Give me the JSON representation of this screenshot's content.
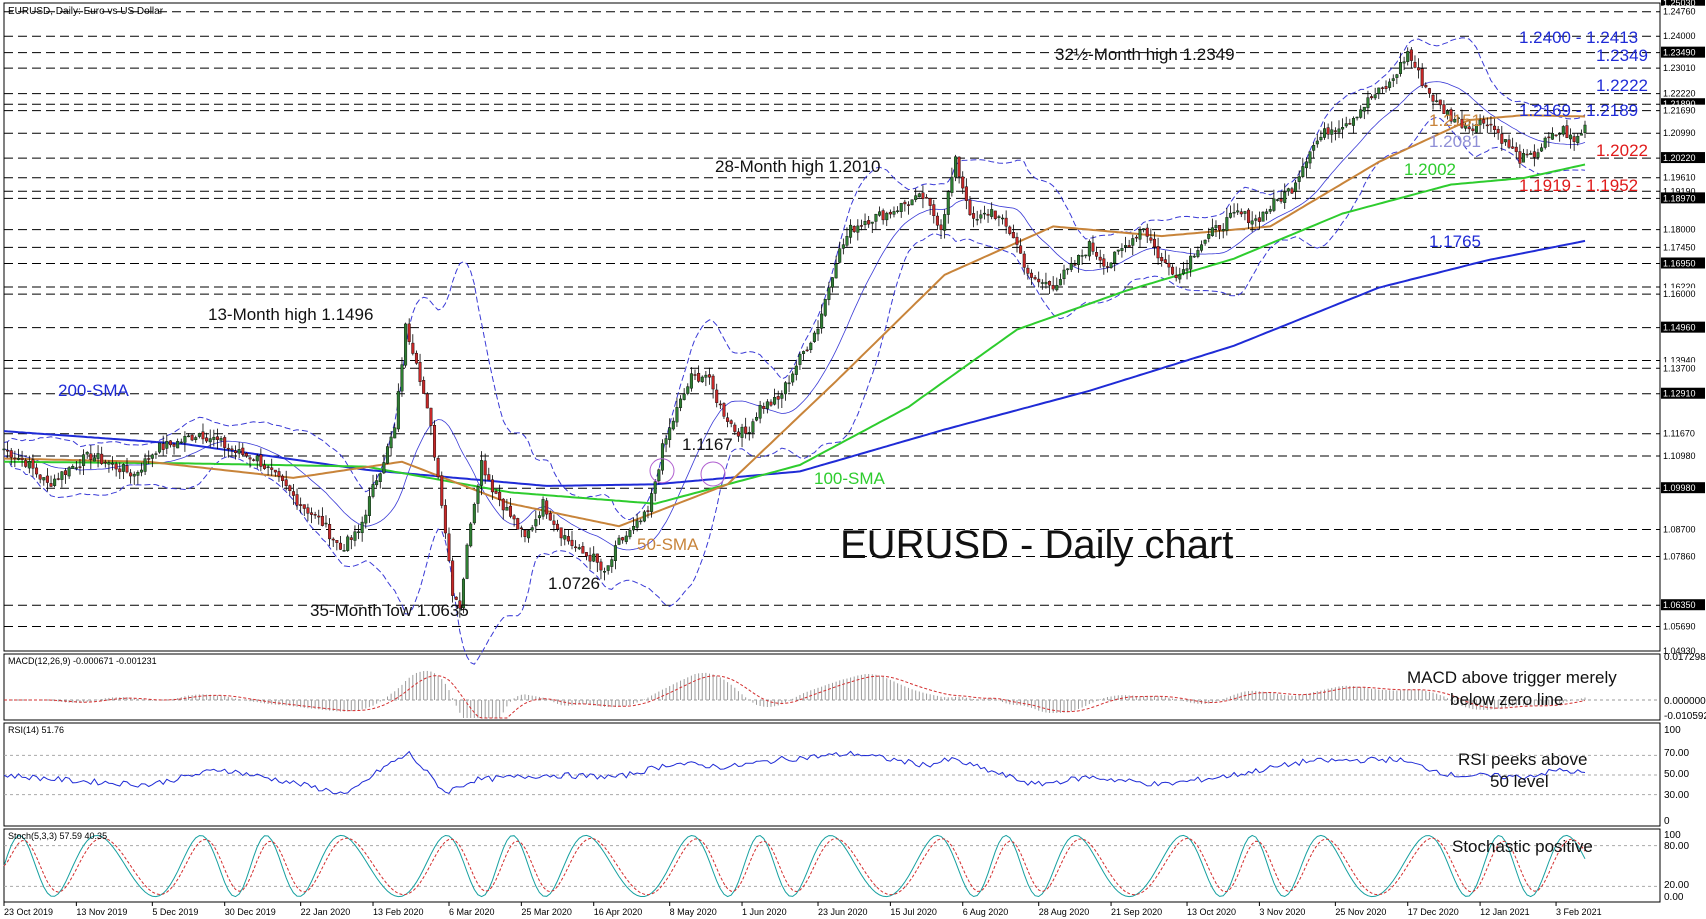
{
  "header": "EURUSD, Daily:  Euro vs US Dollar",
  "big_title": "EURUSD - Daily chart",
  "colors": {
    "candle_up": "#2e7d32",
    "candle_down": "#c62828",
    "sma50": "#c8843a",
    "sma100": "#2ecc2e",
    "sma200": "#1f2bd6",
    "bollinger": "#3a3ad6",
    "macd_hist": "#9c9c9c",
    "macd_signal": "#d32f2f",
    "rsi": "#1f2bd6",
    "stoch_k": "#16a0a0",
    "stoch_d": "#d32f2f",
    "level_blue": "#1f2bd6",
    "level_red": "#e01b1b",
    "level_green": "#2ecc2e",
    "level_orange": "#c8843a",
    "level_purple": "#8f8fd6"
  },
  "chart_data": {
    "type": "candlestick",
    "x_tick_labels": [
      "23 Oct 2019",
      "13 Nov 2019",
      "5 Dec 2019",
      "30 Dec 2019",
      "22 Jan 2020",
      "13 Feb 2020",
      "6 Mar 2020",
      "25 Mar 2020",
      "16 Apr 2020",
      "8 May 2020",
      "1 Jun 2020",
      "23 Jun 2020",
      "15 Jul 2020",
      "6 Aug 2020",
      "28 Aug 2020",
      "21 Sep 2020",
      "13 Oct 2020",
      "3 Nov 2020",
      "25 Nov 2020",
      "17 Dec 2020",
      "12 Jan 2021",
      "3 Feb 2021"
    ],
    "price_axis_ticks": [
      "1.25030",
      "1.24760",
      "1.24000",
      "1.23490",
      "1.23010",
      "1.22220",
      "1.21890",
      "1.21690",
      "1.20990",
      "1.20220",
      "1.19610",
      "1.19190",
      "1.18970",
      "1.18000",
      "1.17450",
      "1.16950",
      "1.16220",
      "1.16000",
      "1.14960",
      "1.13940",
      "1.13700",
      "1.12910",
      "1.11670",
      "1.10980",
      "1.09980",
      "1.08700",
      "1.07860",
      "1.06350",
      "1.05690",
      "1.04930"
    ],
    "ylim": [
      1.0493,
      1.2503
    ],
    "close_path": [
      [
        0,
        1.112
      ],
      [
        6,
        1.108
      ],
      [
        12,
        1.101
      ],
      [
        18,
        1.106
      ],
      [
        24,
        1.11
      ],
      [
        30,
        1.107
      ],
      [
        36,
        1.104
      ],
      [
        42,
        1.112
      ],
      [
        48,
        1.114
      ],
      [
        54,
        1.117
      ],
      [
        58,
        1.115
      ],
      [
        64,
        1.111
      ],
      [
        70,
        1.109
      ],
      [
        76,
        1.102
      ],
      [
        82,
        1.095
      ],
      [
        88,
        1.089
      ],
      [
        93,
        1.081
      ],
      [
        98,
        1.086
      ],
      [
        103,
        1.103
      ],
      [
        108,
        1.118
      ],
      [
        111,
        1.1496
      ],
      [
        114,
        1.14
      ],
      [
        118,
        1.118
      ],
      [
        121,
        1.096
      ],
      [
        124,
        1.068
      ],
      [
        126,
        1.0635
      ],
      [
        129,
        1.09
      ],
      [
        132,
        1.108
      ],
      [
        135,
        1.1
      ],
      [
        139,
        1.093
      ],
      [
        144,
        1.084
      ],
      [
        149,
        1.095
      ],
      [
        154,
        1.086
      ],
      [
        159,
        1.08
      ],
      [
        163,
        1.078
      ],
      [
        166,
        1.0726
      ],
      [
        170,
        1.083
      ],
      [
        174,
        1.087
      ],
      [
        178,
        1.092
      ],
      [
        182,
        1.112
      ],
      [
        186,
        1.124
      ],
      [
        190,
        1.134
      ],
      [
        194,
        1.135
      ],
      [
        198,
        1.125
      ],
      [
        202,
        1.118
      ],
      [
        205,
        1.1167
      ],
      [
        209,
        1.125
      ],
      [
        214,
        1.127
      ],
      [
        219,
        1.138
      ],
      [
        225,
        1.15
      ],
      [
        230,
        1.171
      ],
      [
        234,
        1.18
      ],
      [
        238,
        1.183
      ],
      [
        244,
        1.185
      ],
      [
        249,
        1.188
      ],
      [
        254,
        1.19
      ],
      [
        259,
        1.181
      ],
      [
        263,
        1.201
      ],
      [
        268,
        1.182
      ],
      [
        273,
        1.186
      ],
      [
        279,
        1.178
      ],
      [
        284,
        1.164
      ],
      [
        290,
        1.163
      ],
      [
        295,
        1.168
      ],
      [
        300,
        1.175
      ],
      [
        305,
        1.169
      ],
      [
        310,
        1.175
      ],
      [
        315,
        1.181
      ],
      [
        320,
        1.17
      ],
      [
        325,
        1.166
      ],
      [
        330,
        1.175
      ],
      [
        336,
        1.181
      ],
      [
        341,
        1.185
      ],
      [
        346,
        1.183
      ],
      [
        351,
        1.188
      ],
      [
        356,
        1.193
      ],
      [
        361,
        1.205
      ],
      [
        366,
        1.211
      ],
      [
        372,
        1.214
      ],
      [
        378,
        1.221
      ],
      [
        383,
        1.225
      ],
      [
        388,
        1.2349
      ],
      [
        392,
        1.226
      ],
      [
        396,
        1.219
      ],
      [
        400,
        1.215
      ],
      [
        405,
        1.212
      ],
      [
        410,
        1.214
      ],
      [
        415,
        1.207
      ],
      [
        419,
        1.202
      ],
      [
        422,
        1.2022
      ],
      [
        426,
        1.207
      ],
      [
        431,
        1.211
      ],
      [
        434,
        1.207
      ],
      [
        437,
        1.212
      ]
    ],
    "series": [
      {
        "name": "200-SMA",
        "values": [
          [
            0,
            1.1175
          ],
          [
            50,
            1.1135
          ],
          [
            100,
            1.1055
          ],
          [
            150,
            1.1005
          ],
          [
            180,
            1.101
          ],
          [
            220,
            1.105
          ],
          [
            260,
            1.118
          ],
          [
            300,
            1.13
          ],
          [
            340,
            1.144
          ],
          [
            380,
            1.162
          ],
          [
            410,
            1.1705
          ],
          [
            437,
            1.1765
          ]
        ]
      },
      {
        "name": "100-SMA",
        "values": [
          [
            0,
            1.108
          ],
          [
            50,
            1.1075
          ],
          [
            100,
            1.1065
          ],
          [
            140,
            1.0985
          ],
          [
            180,
            1.095
          ],
          [
            220,
            1.107
          ],
          [
            250,
            1.125
          ],
          [
            280,
            1.149
          ],
          [
            310,
            1.161
          ],
          [
            340,
            1.171
          ],
          [
            370,
            1.185
          ],
          [
            400,
            1.194
          ],
          [
            420,
            1.196
          ],
          [
            437,
            1.2002
          ]
        ]
      },
      {
        "name": "50-SMA",
        "values": [
          [
            0,
            1.109
          ],
          [
            40,
            1.108
          ],
          [
            80,
            1.103
          ],
          [
            110,
            1.108
          ],
          [
            140,
            1.095
          ],
          [
            170,
            1.088
          ],
          [
            200,
            1.101
          ],
          [
            230,
            1.133
          ],
          [
            260,
            1.166
          ],
          [
            290,
            1.181
          ],
          [
            320,
            1.178
          ],
          [
            350,
            1.181
          ],
          [
            380,
            1.201
          ],
          [
            405,
            1.214
          ],
          [
            420,
            1.2155
          ],
          [
            437,
            1.2151
          ]
        ]
      }
    ],
    "level_labels": [
      {
        "text": "1.2400 - 1.2413",
        "color": "blue"
      },
      {
        "text": "1.2349",
        "color": "blue"
      },
      {
        "text": "1.2222",
        "color": "blue"
      },
      {
        "text": "1.2169 - 1.2189",
        "color": "blue"
      },
      {
        "text": "1.2151",
        "color": "orange"
      },
      {
        "text": "1.2081",
        "color": "purple"
      },
      {
        "text": "1.2022",
        "color": "red"
      },
      {
        "text": "1.2002",
        "color": "green"
      },
      {
        "text": "1.1919 - 1.1952",
        "color": "red"
      },
      {
        "text": "1.1765",
        "color": "blue"
      }
    ],
    "annotations": {
      "high_2349": "32½-Month high 1.2349",
      "high_2010": "28-Month high 1.2010",
      "high_1496": "13-Month high 1.1496",
      "low_0635": "35-Month low 1.0635",
      "low_0726": "1.0726",
      "low_1167": "1.1167",
      "sma200": "200-SMA",
      "sma100": "100-SMA",
      "sma50": "50-SMA"
    },
    "macd": {
      "header": "MACD(12,26,9) -0.000671 -0.001231",
      "axis": [
        "0.017298",
        "0.000000",
        "-0.010592"
      ],
      "comment_line1": "MACD above trigger merely",
      "comment_line2": "below zero line"
    },
    "rsi": {
      "header": "RSI(14) 51.76",
      "axis": [
        "100",
        "70.00",
        "50.00",
        "30.00",
        "0"
      ],
      "comment_line1": "RSI peeks above",
      "comment_line2": "50 level",
      "values": [
        [
          0,
          50
        ],
        [
          20,
          44
        ],
        [
          40,
          40
        ],
        [
          60,
          56
        ],
        [
          80,
          42
        ],
        [
          95,
          30
        ],
        [
          105,
          58
        ],
        [
          112,
          72
        ],
        [
          122,
          32
        ],
        [
          130,
          45
        ],
        [
          150,
          50
        ],
        [
          170,
          48
        ],
        [
          185,
          62
        ],
        [
          200,
          58
        ],
        [
          215,
          66
        ],
        [
          235,
          72
        ],
        [
          255,
          60
        ],
        [
          262,
          66
        ],
        [
          285,
          40
        ],
        [
          300,
          48
        ],
        [
          320,
          40
        ],
        [
          340,
          50
        ],
        [
          360,
          64
        ],
        [
          385,
          66
        ],
        [
          400,
          50
        ],
        [
          420,
          48
        ],
        [
          430,
          55
        ],
        [
          437,
          52
        ]
      ]
    },
    "stoch": {
      "header": "Stoch(5,3,3) 57.59 40.35",
      "axis": [
        "100",
        "80.00",
        "20.00",
        "0.00"
      ],
      "comment": "Stochastic positive"
    }
  }
}
